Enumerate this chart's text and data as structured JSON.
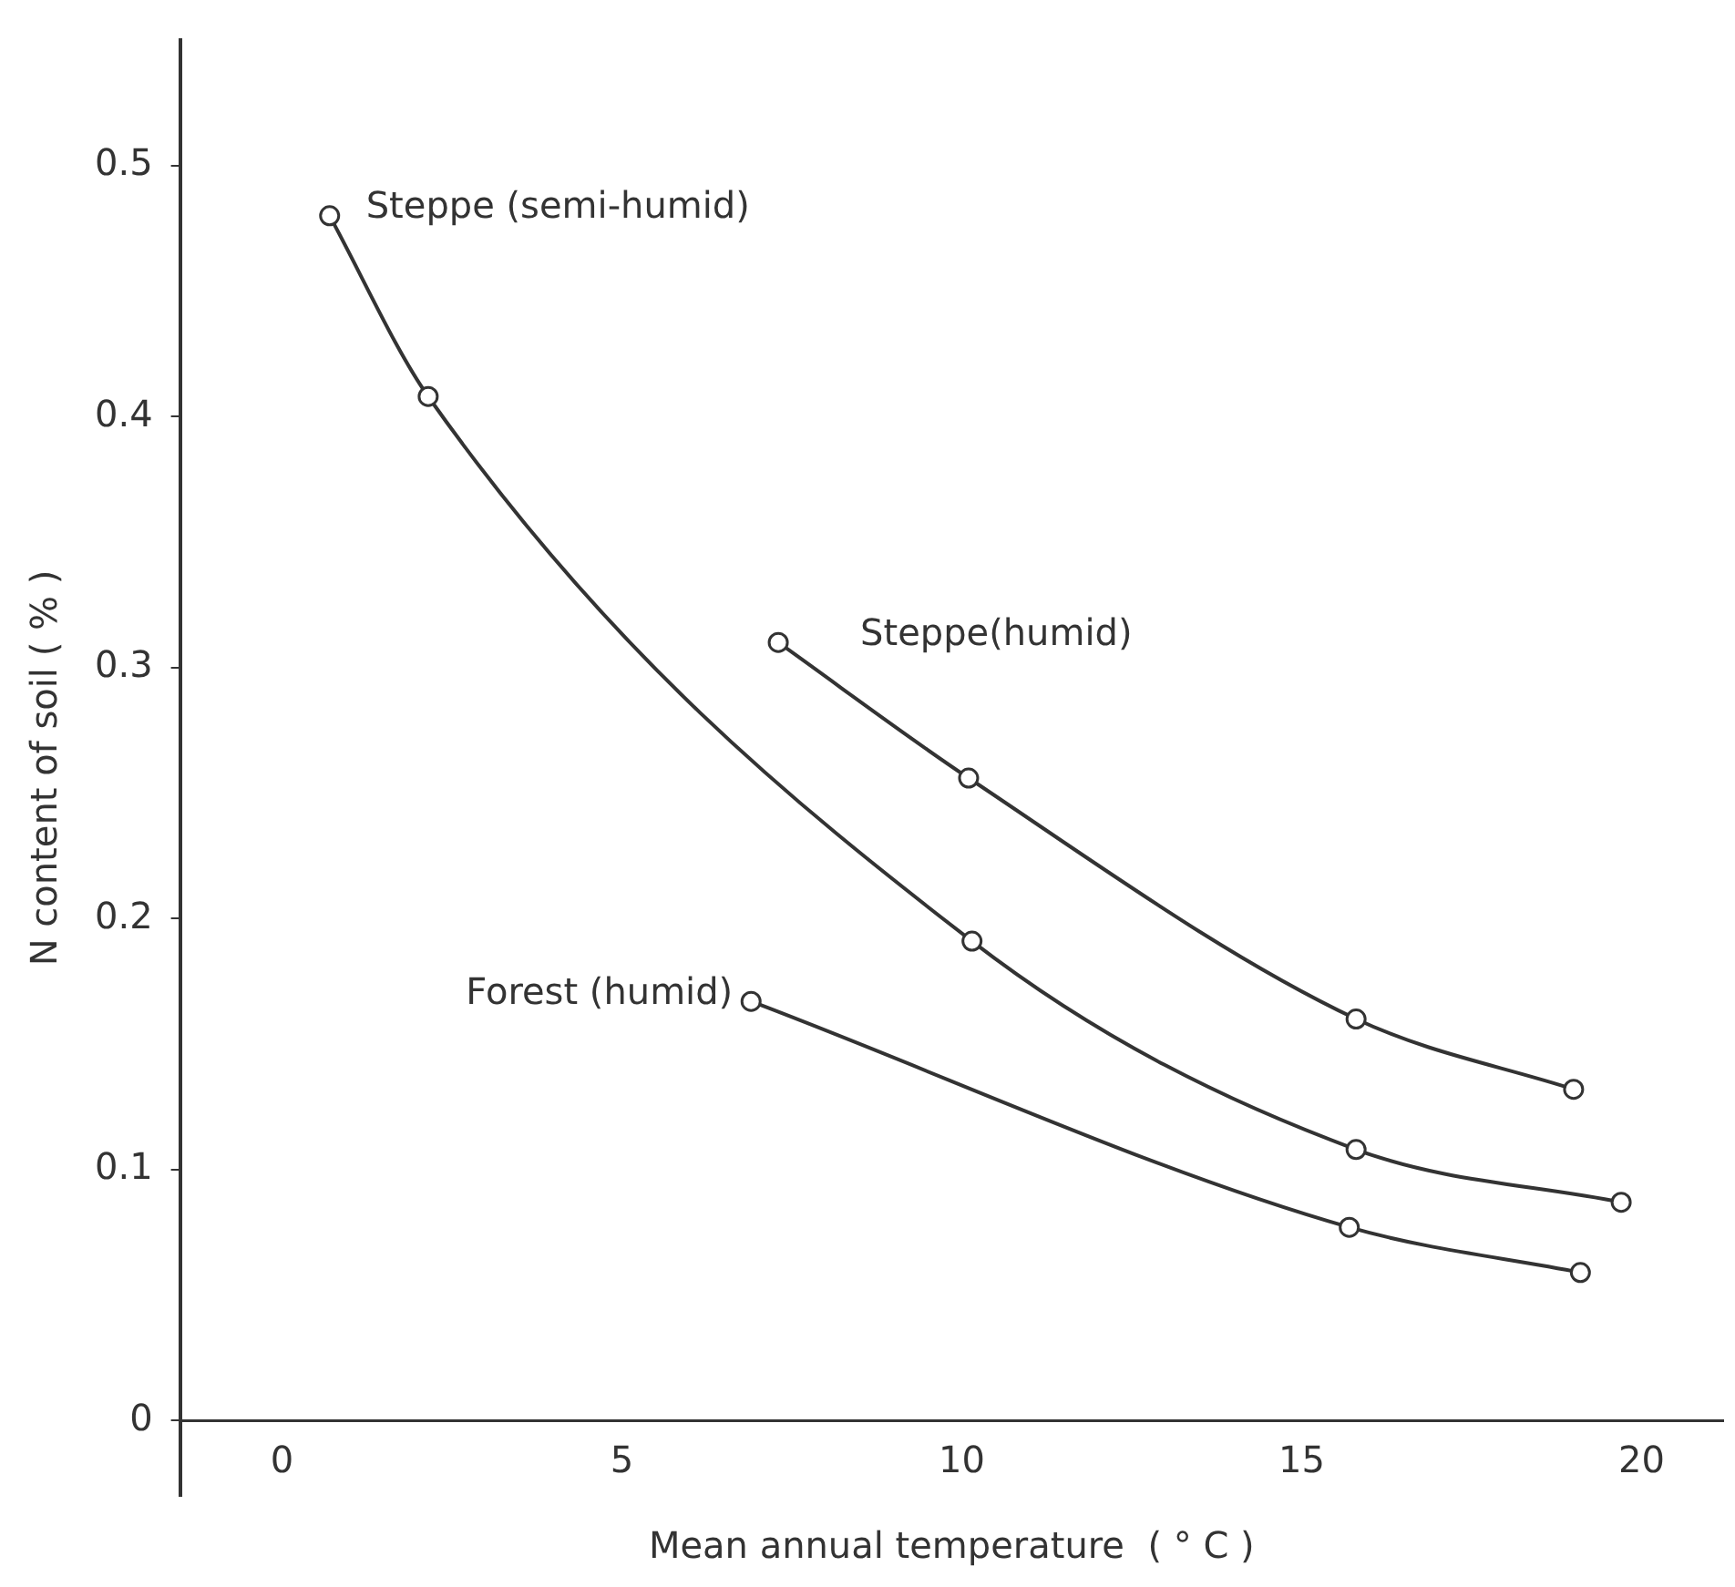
{
  "chart_data": {
    "type": "line",
    "xlabel": "Mean annual temperature  ( ° C )",
    "ylabel": "N content of soil ( % )",
    "xlim": [
      -1.5,
      21.2
    ],
    "ylim": [
      -0.03,
      0.55
    ],
    "xticks": [
      0,
      5,
      10,
      15,
      20
    ],
    "yticks": [
      0,
      0.1,
      0.2,
      0.3,
      0.4,
      0.5
    ],
    "grid": false,
    "legend": false,
    "marker": "circle",
    "line_style": "solid",
    "series": [
      {
        "name": "Steppe (semi-humid)",
        "color": "#333333",
        "x": [
          0.7,
          2.15,
          10.15,
          15.8,
          19.7
        ],
        "values": [
          0.48,
          0.408,
          0.191,
          0.108,
          0.087
        ]
      },
      {
        "name": "Steppe(humid)",
        "color": "#333333",
        "x": [
          7.3,
          10.1,
          15.8,
          19.0
        ],
        "values": [
          0.31,
          0.256,
          0.16,
          0.132
        ]
      },
      {
        "name": "Forest (humid)",
        "color": "#333333",
        "x": [
          6.9,
          15.7,
          19.1
        ],
        "values": [
          0.167,
          0.077,
          0.059
        ]
      }
    ]
  }
}
